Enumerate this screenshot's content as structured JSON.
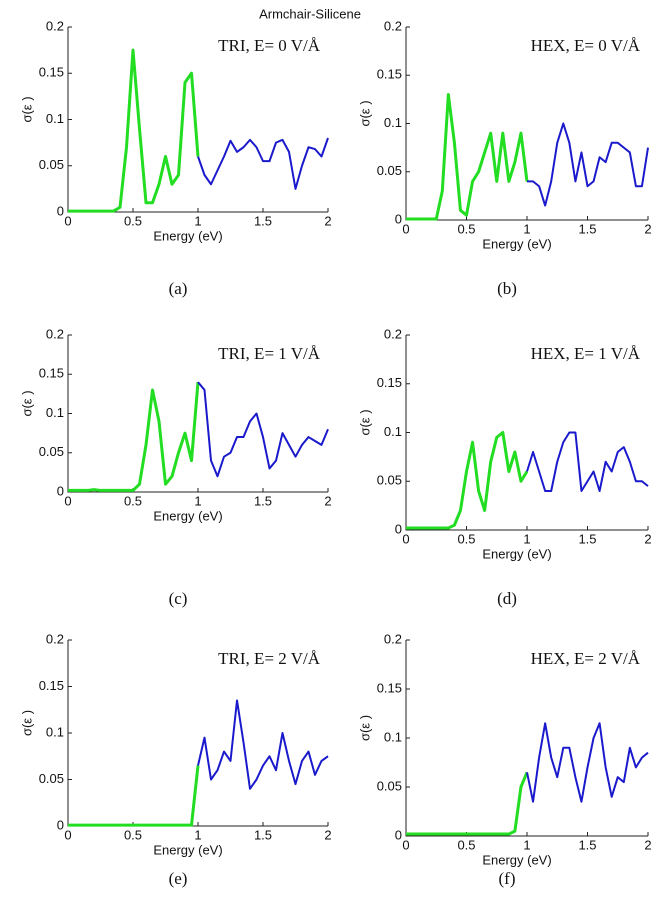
{
  "figure_title": "Armchair-Silicene",
  "chart_data": [
    {
      "type": "line",
      "annotation": "TRI, E= 0 V/Å",
      "caption": "(a)",
      "xlabel": "Energy (eV)",
      "ylabel": "σ(ε )",
      "xlim": [
        0,
        2
      ],
      "ylim": [
        0,
        0.2
      ],
      "xticks": [
        0,
        0.5,
        1,
        1.5,
        2
      ],
      "yticks": [
        0,
        0.05,
        0.1,
        0.15,
        0.2
      ],
      "x": [
        0,
        0.05,
        0.1,
        0.15,
        0.2,
        0.25,
        0.3,
        0.35,
        0.4,
        0.45,
        0.5,
        0.55,
        0.6,
        0.65,
        0.7,
        0.75,
        0.8,
        0.85,
        0.9,
        0.95,
        1,
        1.05,
        1.1,
        1.15,
        1.2,
        1.25,
        1.3,
        1.35,
        1.4,
        1.45,
        1.5,
        1.55,
        1.6,
        1.65,
        1.7,
        1.75,
        1.8,
        1.85,
        1.9,
        1.95,
        2
      ],
      "series": [
        {
          "color": "#22dd22",
          "values": [
            0.001,
            0.001,
            0.001,
            0.001,
            0.001,
            0.001,
            0.001,
            0.001,
            0.005,
            0.07,
            0.175,
            0.09,
            0.01,
            0.01,
            0.03,
            0.06,
            0.03,
            0.04,
            0.14,
            0.15,
            0.06,
            null,
            null,
            null,
            null,
            null,
            null,
            null,
            null,
            null,
            null,
            null,
            null,
            null,
            null,
            null,
            null,
            null,
            null,
            null,
            null
          ]
        },
        {
          "color": "#1a1acc",
          "values": [
            null,
            null,
            null,
            null,
            null,
            null,
            null,
            null,
            null,
            null,
            null,
            null,
            null,
            null,
            null,
            null,
            null,
            null,
            null,
            null,
            0.06,
            0.04,
            0.03,
            0.045,
            0.06,
            0.077,
            0.065,
            0.07,
            0.078,
            0.07,
            0.055,
            0.055,
            0.075,
            0.078,
            0.065,
            0.025,
            0.05,
            0.07,
            0.068,
            0.06,
            0.08
          ]
        }
      ]
    },
    {
      "type": "line",
      "annotation": "HEX, E= 0 V/Å",
      "caption": "(b)",
      "xlabel": "Energy (eV)",
      "ylabel": "σ(ε )",
      "xlim": [
        0,
        2
      ],
      "ylim": [
        0,
        0.2
      ],
      "xticks": [
        0,
        0.5,
        1,
        1.5,
        2
      ],
      "yticks": [
        0,
        0.05,
        0.1,
        0.15,
        0.2
      ],
      "x": [
        0,
        0.05,
        0.1,
        0.15,
        0.2,
        0.25,
        0.3,
        0.35,
        0.4,
        0.45,
        0.5,
        0.55,
        0.6,
        0.65,
        0.7,
        0.75,
        0.8,
        0.85,
        0.9,
        0.95,
        1,
        1.05,
        1.1,
        1.15,
        1.2,
        1.25,
        1.3,
        1.35,
        1.4,
        1.45,
        1.5,
        1.55,
        1.6,
        1.65,
        1.7,
        1.75,
        1.8,
        1.85,
        1.9,
        1.95,
        2
      ],
      "series": [
        {
          "color": "#22dd22",
          "values": [
            0.001,
            0.001,
            0.001,
            0.001,
            0.001,
            0.001,
            0.03,
            0.13,
            0.08,
            0.01,
            0.005,
            0.04,
            0.05,
            0.07,
            0.09,
            0.04,
            0.09,
            0.04,
            0.06,
            0.09,
            0.04,
            null,
            null,
            null,
            null,
            null,
            null,
            null,
            null,
            null,
            null,
            null,
            null,
            null,
            null,
            null,
            null,
            null,
            null,
            null,
            null
          ]
        },
        {
          "color": "#1a1acc",
          "values": [
            null,
            null,
            null,
            null,
            null,
            null,
            null,
            null,
            null,
            null,
            null,
            null,
            null,
            null,
            null,
            null,
            null,
            null,
            null,
            null,
            0.04,
            0.04,
            0.035,
            0.015,
            0.04,
            0.08,
            0.1,
            0.08,
            0.04,
            0.07,
            0.035,
            0.04,
            0.065,
            0.06,
            0.08,
            0.08,
            0.075,
            0.07,
            0.035,
            0.035,
            0.075
          ]
        }
      ]
    },
    {
      "type": "line",
      "annotation": "TRI, E= 1 V/Å",
      "caption": "(c)",
      "xlabel": "Energy (eV)",
      "ylabel": "σ(ε )",
      "xlim": [
        0,
        2
      ],
      "ylim": [
        0,
        0.2
      ],
      "xticks": [
        0,
        0.5,
        1,
        1.5,
        2
      ],
      "yticks": [
        0,
        0.05,
        0.1,
        0.15,
        0.2
      ],
      "x": [
        0,
        0.05,
        0.1,
        0.15,
        0.2,
        0.25,
        0.3,
        0.35,
        0.4,
        0.45,
        0.5,
        0.55,
        0.6,
        0.65,
        0.7,
        0.75,
        0.8,
        0.85,
        0.9,
        0.95,
        1,
        1.05,
        1.1,
        1.15,
        1.2,
        1.25,
        1.3,
        1.35,
        1.4,
        1.45,
        1.5,
        1.55,
        1.6,
        1.65,
        1.7,
        1.75,
        1.8,
        1.85,
        1.9,
        1.95,
        2
      ],
      "series": [
        {
          "color": "#22dd22",
          "values": [
            0.002,
            0.002,
            0.002,
            0.002,
            0.003,
            0.002,
            0.002,
            0.002,
            0.002,
            0.002,
            0.002,
            0.01,
            0.06,
            0.13,
            0.09,
            0.01,
            0.02,
            0.05,
            0.075,
            0.04,
            0.14,
            null,
            null,
            null,
            null,
            null,
            null,
            null,
            null,
            null,
            null,
            null,
            null,
            null,
            null,
            null,
            null,
            null,
            null,
            null,
            null
          ]
        },
        {
          "color": "#1a1acc",
          "values": [
            null,
            null,
            null,
            null,
            null,
            null,
            null,
            null,
            null,
            null,
            null,
            null,
            null,
            null,
            null,
            null,
            null,
            null,
            null,
            null,
            0.14,
            0.13,
            0.04,
            0.02,
            0.045,
            0.05,
            0.07,
            0.07,
            0.09,
            0.1,
            0.07,
            0.03,
            0.04,
            0.075,
            0.06,
            0.045,
            0.06,
            0.07,
            0.065,
            0.06,
            0.08
          ]
        }
      ]
    },
    {
      "type": "line",
      "annotation": "HEX, E= 1 V/Å",
      "caption": "(d)",
      "xlabel": "Energy (eV)",
      "ylabel": "σ(ε )",
      "xlim": [
        0,
        2
      ],
      "ylim": [
        0,
        0.2
      ],
      "xticks": [
        0,
        0.5,
        1,
        1.5,
        2
      ],
      "yticks": [
        0,
        0.05,
        0.1,
        0.15,
        0.2
      ],
      "x": [
        0,
        0.05,
        0.1,
        0.15,
        0.2,
        0.25,
        0.3,
        0.35,
        0.4,
        0.45,
        0.5,
        0.55,
        0.6,
        0.65,
        0.7,
        0.75,
        0.8,
        0.85,
        0.9,
        0.95,
        1,
        1.05,
        1.1,
        1.15,
        1.2,
        1.25,
        1.3,
        1.35,
        1.4,
        1.45,
        1.5,
        1.55,
        1.6,
        1.65,
        1.7,
        1.75,
        1.8,
        1.85,
        1.9,
        1.95,
        2
      ],
      "series": [
        {
          "color": "#22dd22",
          "values": [
            0.002,
            0.002,
            0.002,
            0.002,
            0.002,
            0.002,
            0.002,
            0.002,
            0.005,
            0.02,
            0.06,
            0.09,
            0.04,
            0.02,
            0.07,
            0.095,
            0.1,
            0.06,
            0.08,
            0.05,
            0.06,
            null,
            null,
            null,
            null,
            null,
            null,
            null,
            null,
            null,
            null,
            null,
            null,
            null,
            null,
            null,
            null,
            null,
            null,
            null,
            null
          ]
        },
        {
          "color": "#1a1acc",
          "values": [
            null,
            null,
            null,
            null,
            null,
            null,
            null,
            null,
            null,
            null,
            null,
            null,
            null,
            null,
            null,
            null,
            null,
            null,
            null,
            null,
            0.06,
            0.08,
            0.06,
            0.04,
            0.04,
            0.07,
            0.09,
            0.1,
            0.1,
            0.04,
            0.05,
            0.06,
            0.04,
            0.07,
            0.06,
            0.08,
            0.085,
            0.07,
            0.05,
            0.05,
            0.045
          ]
        }
      ]
    },
    {
      "type": "line",
      "annotation": "TRI, E= 2 V/Å",
      "caption": "(e)",
      "xlabel": "Energy (eV)",
      "ylabel": "σ(ε )",
      "xlim": [
        0,
        2
      ],
      "ylim": [
        0,
        0.2
      ],
      "xticks": [
        0,
        0.5,
        1,
        1.5,
        2
      ],
      "yticks": [
        0,
        0.05,
        0.1,
        0.15,
        0.2
      ],
      "x": [
        0,
        0.05,
        0.1,
        0.15,
        0.2,
        0.25,
        0.3,
        0.35,
        0.4,
        0.45,
        0.5,
        0.55,
        0.6,
        0.65,
        0.7,
        0.75,
        0.8,
        0.85,
        0.9,
        0.95,
        1,
        1.05,
        1.1,
        1.15,
        1.2,
        1.25,
        1.3,
        1.35,
        1.4,
        1.45,
        1.5,
        1.55,
        1.6,
        1.65,
        1.7,
        1.75,
        1.8,
        1.85,
        1.9,
        1.95,
        2
      ],
      "series": [
        {
          "color": "#22dd22",
          "values": [
            0.001,
            0.001,
            0.001,
            0.001,
            0.001,
            0.001,
            0.001,
            0.001,
            0.001,
            0.001,
            0.001,
            0.001,
            0.001,
            0.001,
            0.001,
            0.001,
            0.001,
            0.001,
            0.001,
            0.001,
            0.065,
            null,
            null,
            null,
            null,
            null,
            null,
            null,
            null,
            null,
            null,
            null,
            null,
            null,
            null,
            null,
            null,
            null,
            null,
            null,
            null
          ]
        },
        {
          "color": "#1a1acc",
          "values": [
            null,
            null,
            null,
            null,
            null,
            null,
            null,
            null,
            null,
            null,
            null,
            null,
            null,
            null,
            null,
            null,
            null,
            null,
            null,
            null,
            0.065,
            0.095,
            0.05,
            0.06,
            0.08,
            0.07,
            0.135,
            0.09,
            0.04,
            0.05,
            0.065,
            0.075,
            0.06,
            0.1,
            0.07,
            0.045,
            0.07,
            0.08,
            0.055,
            0.07,
            0.075
          ]
        }
      ]
    },
    {
      "type": "line",
      "annotation": "HEX, E= 2 V/Å",
      "caption": "(f)",
      "xlabel": "Energy (eV)",
      "ylabel": "σ(ε )",
      "xlim": [
        0,
        2
      ],
      "ylim": [
        0,
        0.2
      ],
      "xticks": [
        0,
        0.5,
        1,
        1.5,
        2
      ],
      "yticks": [
        0,
        0.05,
        0.1,
        0.15,
        0.2
      ],
      "x": [
        0,
        0.05,
        0.1,
        0.15,
        0.2,
        0.25,
        0.3,
        0.35,
        0.4,
        0.45,
        0.5,
        0.55,
        0.6,
        0.65,
        0.7,
        0.75,
        0.8,
        0.85,
        0.9,
        0.95,
        1,
        1.05,
        1.1,
        1.15,
        1.2,
        1.25,
        1.3,
        1.35,
        1.4,
        1.45,
        1.5,
        1.55,
        1.6,
        1.65,
        1.7,
        1.75,
        1.8,
        1.85,
        1.9,
        1.95,
        2
      ],
      "series": [
        {
          "color": "#22dd22",
          "values": [
            0.002,
            0.002,
            0.002,
            0.002,
            0.002,
            0.002,
            0.002,
            0.002,
            0.002,
            0.002,
            0.002,
            0.002,
            0.002,
            0.002,
            0.002,
            0.002,
            0.002,
            0.002,
            0.005,
            0.05,
            0.065,
            null,
            null,
            null,
            null,
            null,
            null,
            null,
            null,
            null,
            null,
            null,
            null,
            null,
            null,
            null,
            null,
            null,
            null,
            null,
            null
          ]
        },
        {
          "color": "#1a1acc",
          "values": [
            null,
            null,
            null,
            null,
            null,
            null,
            null,
            null,
            null,
            null,
            null,
            null,
            null,
            null,
            null,
            null,
            null,
            null,
            null,
            null,
            0.065,
            0.035,
            0.08,
            0.115,
            0.08,
            0.06,
            0.09,
            0.09,
            0.06,
            0.035,
            0.07,
            0.1,
            0.115,
            0.07,
            0.04,
            0.06,
            0.055,
            0.09,
            0.07,
            0.08,
            0.085
          ]
        }
      ]
    }
  ]
}
